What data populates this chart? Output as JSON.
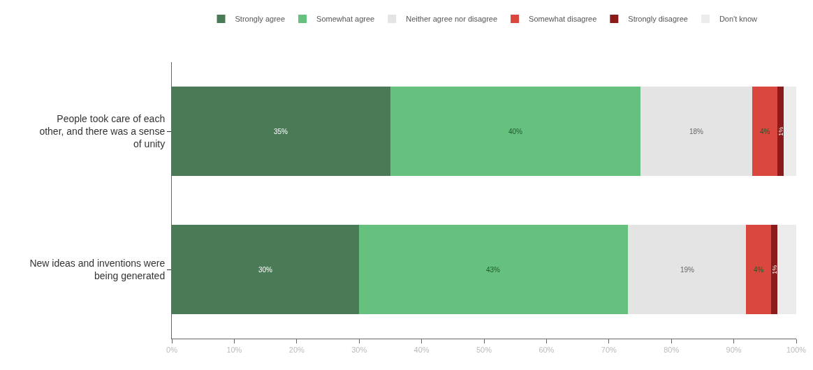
{
  "chart_data": {
    "type": "bar",
    "orientation": "horizontal",
    "stacked": true,
    "categories": [
      "People took care of each other, and there was a sense of unity",
      "New ideas and inventions were being generated"
    ],
    "series": [
      {
        "name": "Strongly agree",
        "color": "#4a7a56",
        "values": [
          35,
          30
        ],
        "value_labels": [
          "35%",
          "30%"
        ]
      },
      {
        "name": "Somewhat agree",
        "color": "#66c17f",
        "values": [
          40,
          43
        ],
        "value_labels": [
          "40%",
          "43%"
        ]
      },
      {
        "name": "Neither agree nor disagree",
        "color": "#e4e4e4",
        "values": [
          18,
          19
        ],
        "value_labels": [
          "18%",
          "19%"
        ]
      },
      {
        "name": "Somewhat disagree",
        "color": "#d9473e",
        "values": [
          4,
          4
        ],
        "value_labels": [
          "4%",
          "4%"
        ]
      },
      {
        "name": "Strongly disagree",
        "color": "#8b1a1a",
        "values": [
          1,
          1
        ],
        "value_labels": [
          "1%",
          "1%"
        ]
      },
      {
        "name": "Don't know",
        "color": "#ebebeb",
        "values": [
          2,
          3
        ]
      }
    ],
    "xlim": [
      0,
      100
    ],
    "xticks": [
      {
        "value": 0,
        "label": "0%"
      },
      {
        "value": 10,
        "label": "10%"
      },
      {
        "value": 20,
        "label": "20%"
      },
      {
        "value": 30,
        "label": "30%"
      },
      {
        "value": 40,
        "label": "40%"
      },
      {
        "value": 50,
        "label": "50%"
      },
      {
        "value": 60,
        "label": "60%"
      },
      {
        "value": 70,
        "label": "70%"
      },
      {
        "value": 80,
        "label": "80%"
      },
      {
        "value": 90,
        "label": "90%"
      },
      {
        "value": 100,
        "label": "100%"
      }
    ],
    "grid": false,
    "legend": "top"
  }
}
